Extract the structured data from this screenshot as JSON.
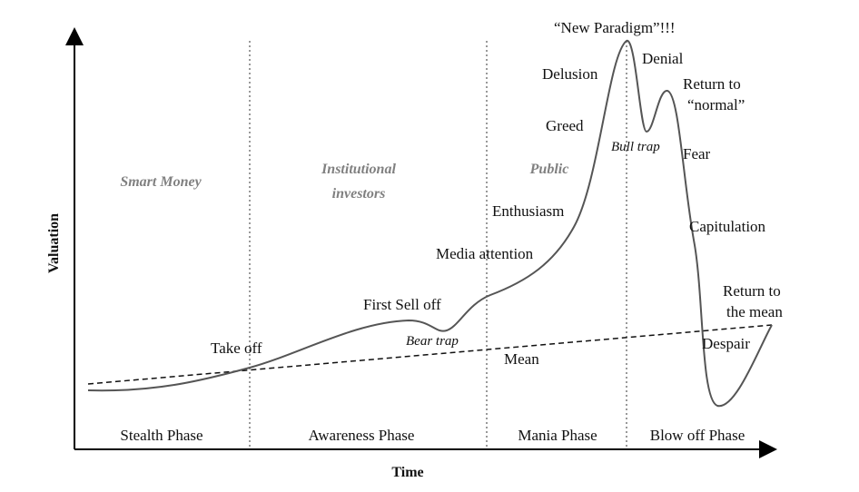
{
  "axes": {
    "x": "Time",
    "y": "Valuation"
  },
  "audiences": [
    "Smart Money",
    [
      "Institutional",
      "investors"
    ],
    "Public"
  ],
  "phases": [
    "Stealth Phase",
    "Awareness Phase",
    "Mania Phase",
    "Blow off Phase"
  ],
  "annotations": {
    "take_off": "Take off",
    "first_sell_off": "First Sell off",
    "bear_trap": "Bear trap",
    "mean": "Mean",
    "media_attention": "Media attention",
    "enthusiasm": "Enthusiasm",
    "greed": "Greed",
    "delusion": "Delusion",
    "new_paradigm": "“New Paradigm”!!!",
    "denial": "Denial",
    "bull_trap": "Bull trap",
    "return_to_normal": [
      "Return to",
      "“normal”"
    ],
    "fear": "Fear",
    "capitulation": "Capitulation",
    "despair": "Despair",
    "return_to_mean": [
      "Return to",
      "the mean"
    ]
  }
}
